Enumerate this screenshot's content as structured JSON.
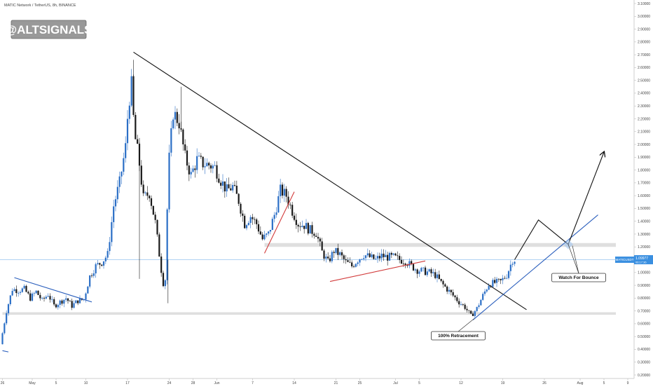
{
  "header": {
    "symbol_line": "MATIC Network / TetherUS, 8h, BINANCE"
  },
  "watermark": {
    "label": "@ALTSIGNALS"
  },
  "price_tag": {
    "symbol": "MATICUSDT",
    "value": "1.09977",
    "sub": "06:17:36"
  },
  "colors": {
    "up": "#2b6fc6",
    "down": "#1a1a1a",
    "trend_black": "#111111",
    "trend_blue": "#2b5fbd",
    "trend_red": "#d23b3b",
    "zone": "#d9d9d9",
    "axis_text": "#444444",
    "price_line": "#3a8fe0"
  },
  "annotations": [
    {
      "id": "retracement",
      "text": "100% Retracement"
    },
    {
      "id": "bounce",
      "text": "Watch For Bounce"
    }
  ],
  "chart_data": {
    "type": "candlestick",
    "title": "MATIC Network / TetherUS, 8h, BINANCE",
    "y_axis": {
      "min": 0.2,
      "max": 3.1,
      "ticks": [
        "3.10000",
        "3.00000",
        "2.90000",
        "2.80000",
        "2.70000",
        "2.60000",
        "2.50000",
        "2.40000",
        "2.30000",
        "2.20000",
        "2.10000",
        "2.00000",
        "1.90000",
        "1.80000",
        "1.70000",
        "1.60000",
        "1.50000",
        "1.40000",
        "1.30000",
        "1.20000",
        "1.10000",
        "1.00000",
        "0.90000",
        "0.80000",
        "0.70000",
        "0.60000",
        "0.50000",
        "0.40000",
        "0.30000",
        "0.20000"
      ]
    },
    "x_axis": {
      "ticks": [
        {
          "label": "26",
          "day": -4
        },
        {
          "label": "May",
          "day": 1
        },
        {
          "label": "5",
          "day": 5
        },
        {
          "label": "10",
          "day": 10
        },
        {
          "label": "17",
          "day": 17
        },
        {
          "label": "24",
          "day": 24
        },
        {
          "label": "28",
          "day": 28
        },
        {
          "label": "Jun",
          "day": 32
        },
        {
          "label": "7",
          "day": 38
        },
        {
          "label": "14",
          "day": 45
        },
        {
          "label": "21",
          "day": 52
        },
        {
          "label": "25",
          "day": 56
        },
        {
          "label": "Jul",
          "day": 62
        },
        {
          "label": "5",
          "day": 66
        },
        {
          "label": "12",
          "day": 73
        },
        {
          "label": "19",
          "day": 80
        },
        {
          "label": "26",
          "day": 87
        },
        {
          "label": "Aug",
          "day": 93
        },
        {
          "label": "5",
          "day": 97
        },
        {
          "label": "9",
          "day": 101
        }
      ]
    },
    "anchors": [
      {
        "day": -4.0,
        "price": 0.44
      },
      {
        "day": -3.0,
        "price": 0.7
      },
      {
        "day": -2.0,
        "price": 0.87
      },
      {
        "day": -1.0,
        "price": 0.86
      },
      {
        "day": 0.0,
        "price": 0.87
      },
      {
        "day": 1.0,
        "price": 0.8
      },
      {
        "day": 2.0,
        "price": 0.85
      },
      {
        "day": 3.0,
        "price": 0.78
      },
      {
        "day": 4.0,
        "price": 0.83
      },
      {
        "day": 5.0,
        "price": 0.74
      },
      {
        "day": 6.0,
        "price": 0.77
      },
      {
        "day": 7.0,
        "price": 0.8
      },
      {
        "day": 8.0,
        "price": 0.74
      },
      {
        "day": 9.0,
        "price": 0.78
      },
      {
        "day": 10.0,
        "price": 0.79
      },
      {
        "day": 11.0,
        "price": 0.97
      },
      {
        "day": 12.0,
        "price": 1.05
      },
      {
        "day": 13.0,
        "price": 1.08
      },
      {
        "day": 14.0,
        "price": 1.14
      },
      {
        "day": 15.0,
        "price": 1.52
      },
      {
        "day": 16.0,
        "price": 1.7
      },
      {
        "day": 17.0,
        "price": 1.98
      },
      {
        "day": 17.5,
        "price": 2.32
      },
      {
        "day": 18.0,
        "price": 2.46
      },
      {
        "day": 18.5,
        "price": 2.08
      },
      {
        "day": 19.2,
        "price": 1.9
      },
      {
        "day": 20.0,
        "price": 1.58
      },
      {
        "day": 21.0,
        "price": 1.62
      },
      {
        "day": 22.0,
        "price": 1.39
      },
      {
        "day": 23.0,
        "price": 1.02
      },
      {
        "day": 23.6,
        "price": 0.84
      },
      {
        "day": 24.2,
        "price": 1.82
      },
      {
        "day": 25.0,
        "price": 2.25
      },
      {
        "day": 26.0,
        "price": 2.17
      },
      {
        "day": 27.0,
        "price": 1.9
      },
      {
        "day": 28.0,
        "price": 1.76
      },
      {
        "day": 29.0,
        "price": 1.88
      },
      {
        "day": 30.0,
        "price": 1.85
      },
      {
        "day": 31.0,
        "price": 1.84
      },
      {
        "day": 32.0,
        "price": 1.82
      },
      {
        "day": 33.0,
        "price": 1.72
      },
      {
        "day": 34.0,
        "price": 1.64
      },
      {
        "day": 35.0,
        "price": 1.67
      },
      {
        "day": 36.0,
        "price": 1.56
      },
      {
        "day": 37.0,
        "price": 1.38
      },
      {
        "day": 38.0,
        "price": 1.44
      },
      {
        "day": 39.0,
        "price": 1.38
      },
      {
        "day": 40.0,
        "price": 1.26
      },
      {
        "day": 41.0,
        "price": 1.3
      },
      {
        "day": 42.0,
        "price": 1.45
      },
      {
        "day": 43.0,
        "price": 1.64
      },
      {
        "day": 44.0,
        "price": 1.6
      },
      {
        "day": 45.0,
        "price": 1.48
      },
      {
        "day": 46.0,
        "price": 1.38
      },
      {
        "day": 47.0,
        "price": 1.37
      },
      {
        "day": 48.0,
        "price": 1.33
      },
      {
        "day": 49.0,
        "price": 1.31
      },
      {
        "day": 50.0,
        "price": 1.16
      },
      {
        "day": 51.0,
        "price": 1.08
      },
      {
        "day": 52.0,
        "price": 1.17
      },
      {
        "day": 53.0,
        "price": 1.14
      },
      {
        "day": 54.0,
        "price": 1.08
      },
      {
        "day": 55.0,
        "price": 1.05
      },
      {
        "day": 56.0,
        "price": 1.1
      },
      {
        "day": 57.0,
        "price": 1.14
      },
      {
        "day": 58.0,
        "price": 1.12
      },
      {
        "day": 59.0,
        "price": 1.1
      },
      {
        "day": 60.0,
        "price": 1.13
      },
      {
        "day": 61.0,
        "price": 1.12
      },
      {
        "day": 62.0,
        "price": 1.12
      },
      {
        "day": 63.0,
        "price": 1.1
      },
      {
        "day": 64.0,
        "price": 1.09
      },
      {
        "day": 65.0,
        "price": 1.05
      },
      {
        "day": 66.0,
        "price": 1.02
      },
      {
        "day": 67.0,
        "price": 1.01
      },
      {
        "day": 68.0,
        "price": 1.0
      },
      {
        "day": 69.0,
        "price": 0.98
      },
      {
        "day": 70.0,
        "price": 0.92
      },
      {
        "day": 71.0,
        "price": 0.87
      },
      {
        "day": 72.0,
        "price": 0.82
      },
      {
        "day": 73.0,
        "price": 0.77
      },
      {
        "day": 74.0,
        "price": 0.73
      },
      {
        "day": 75.0,
        "price": 0.66
      },
      {
        "day": 76.0,
        "price": 0.72
      },
      {
        "day": 77.0,
        "price": 0.82
      },
      {
        "day": 78.0,
        "price": 0.91
      },
      {
        "day": 79.0,
        "price": 0.92
      },
      {
        "day": 80.0,
        "price": 0.93
      },
      {
        "day": 81.0,
        "price": 0.98
      },
      {
        "day": 82.0,
        "price": 1.1
      }
    ],
    "levels": {
      "last_price": 1.09977,
      "support_zone": [
        0.67,
        0.69
      ],
      "resistance_zone": [
        1.2,
        1.23
      ]
    },
    "trendlines": [
      {
        "name": "main-downtrend",
        "color": "trend_black",
        "from": {
          "day": 18.0,
          "price": 2.72
        },
        "to": {
          "day": 84.0,
          "price": 0.71
        }
      },
      {
        "name": "early-wedge",
        "color": "trend_blue",
        "from": {
          "day": -2.0,
          "price": 0.96
        },
        "to": {
          "day": 11.0,
          "price": 0.77
        }
      },
      {
        "name": "left-edge-mark",
        "color": "trend_blue",
        "from": {
          "day": -4.0,
          "price": 0.39
        },
        "to": {
          "day": -3.0,
          "price": 0.38
        }
      },
      {
        "name": "red-rise-1",
        "color": "trend_red",
        "from": {
          "day": 40.0,
          "price": 1.15
        },
        "to": {
          "day": 45.0,
          "price": 1.63
        }
      },
      {
        "name": "red-rise-2",
        "color": "trend_red",
        "from": {
          "day": 51.0,
          "price": 0.93
        },
        "to": {
          "day": 67.0,
          "price": 1.09
        }
      },
      {
        "name": "uptrend-support",
        "color": "trend_blue",
        "from": {
          "day": 75.0,
          "price": 0.63
        },
        "to": {
          "day": 96.0,
          "price": 1.45
        }
      }
    ],
    "projection": [
      {
        "day": 82.0,
        "price": 1.1
      },
      {
        "day": 86.0,
        "price": 1.41
      },
      {
        "day": 91.0,
        "price": 1.22
      },
      {
        "day": 97.0,
        "price": 1.94
      }
    ],
    "bounce_marker": {
      "day": 91.0,
      "price": 1.22
    }
  }
}
